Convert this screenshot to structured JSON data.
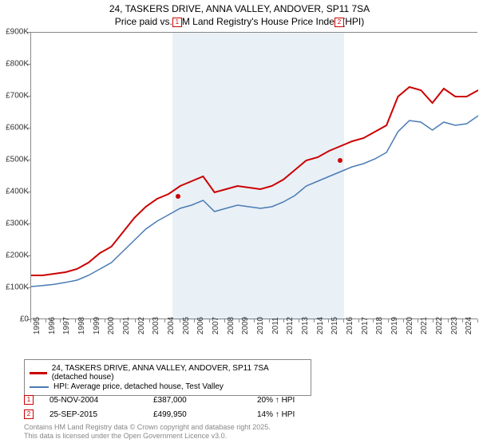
{
  "title": {
    "line1": "24, TASKERS DRIVE, ANNA VALLEY, ANDOVER, SP11 7SA",
    "line2": "Price paid vs. HM Land Registry's House Price Index (HPI)"
  },
  "chart": {
    "type": "line",
    "background_color": "#ffffff",
    "plot_border_color": "#888888",
    "x_years": [
      1995,
      1996,
      1997,
      1998,
      1999,
      2000,
      2001,
      2002,
      2003,
      2004,
      2005,
      2006,
      2007,
      2008,
      2009,
      2010,
      2011,
      2012,
      2013,
      2014,
      2015,
      2016,
      2017,
      2018,
      2019,
      2020,
      2021,
      2022,
      2023,
      2024,
      2025
    ],
    "y_ticks_k": [
      0,
      100,
      200,
      300,
      400,
      500,
      600,
      700,
      800,
      900
    ],
    "y_max_k": 900,
    "shaded_bands": [
      {
        "from_year": 2004.5,
        "to_year": 2005.2
      },
      {
        "from_year": 2005.2,
        "to_year": 2016.0
      }
    ],
    "shaded_color": "rgba(70,130,180,0.12)",
    "series": [
      {
        "name": "24, TASKERS DRIVE, ANNA VALLEY, ANDOVER, SP11 7SA (detached house)",
        "color": "#cc0000",
        "width": 2,
        "points_k": [
          140,
          140,
          145,
          150,
          160,
          180,
          210,
          230,
          275,
          320,
          355,
          380,
          395,
          420,
          435,
          450,
          400,
          410,
          420,
          415,
          410,
          420,
          440,
          470,
          500,
          510,
          530,
          545,
          560,
          570,
          590,
          610,
          700,
          730,
          720,
          680,
          725,
          700,
          700,
          720
        ]
      },
      {
        "name": "HPI: Average price, detached house, Test Valley",
        "color": "#4a7bb5",
        "width": 1.5,
        "points_k": [
          105,
          108,
          112,
          118,
          125,
          140,
          160,
          180,
          215,
          250,
          285,
          310,
          330,
          350,
          360,
          375,
          340,
          350,
          360,
          355,
          350,
          355,
          370,
          390,
          420,
          435,
          450,
          465,
          480,
          490,
          505,
          525,
          590,
          625,
          620,
          595,
          620,
          610,
          615,
          640
        ]
      }
    ],
    "markers": [
      {
        "id": "1",
        "year": 2004.85,
        "value_k": 387
      },
      {
        "id": "2",
        "year": 2015.73,
        "value_k": 500
      }
    ],
    "marker_box_color": "#cc0000",
    "axis_fontsize": 10,
    "title_fontsize": 12
  },
  "legend": {
    "rows": [
      {
        "color": "#cc0000",
        "label": "24, TASKERS DRIVE, ANNA VALLEY, ANDOVER, SP11 7SA (detached house)"
      },
      {
        "color": "#4a7bb5",
        "label": "HPI: Average price, detached house, Test Valley"
      }
    ]
  },
  "transactions": [
    {
      "num": "1",
      "date": "05-NOV-2004",
      "price": "£387,000",
      "delta": "20% ↑ HPI"
    },
    {
      "num": "2",
      "date": "25-SEP-2015",
      "price": "£499,950",
      "delta": "14% ↑ HPI"
    }
  ],
  "footer": {
    "line1": "Contains HM Land Registry data © Crown copyright and database right 2025.",
    "line2": "This data is licensed under the Open Government Licence v3.0."
  }
}
